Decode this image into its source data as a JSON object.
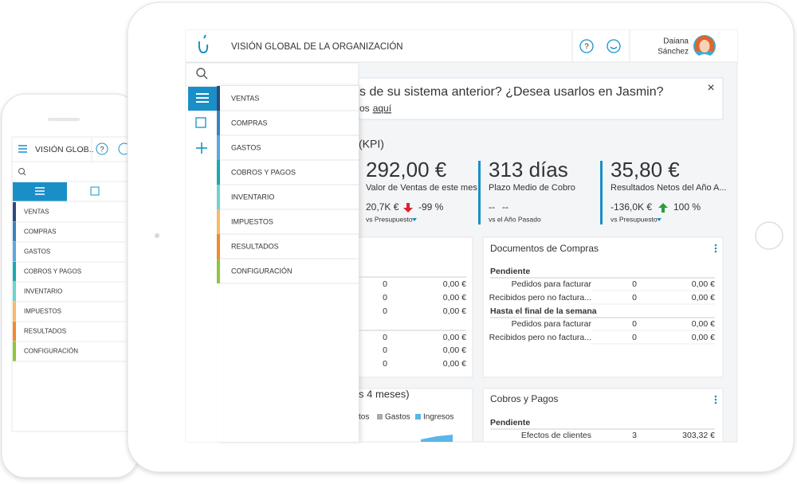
{
  "menu": [
    "VENTAS",
    "COMPRAS",
    "GASTOS",
    "COBROS Y PAGOS",
    "INVENTARIO",
    "IMPUESTOS",
    "RESULTADOS",
    "CONFIGURACIÓN"
  ],
  "phone": {
    "title": "VISIÓN GLOB..",
    "help_icon": "?"
  },
  "tablet": {
    "header": {
      "title": "VISIÓN GLOBAL DE LA ORGANIZACIÓN",
      "help_icon": "?",
      "user_first": "Daiana",
      "user_last": "Sánchez"
    },
    "banner": {
      "text": "s de su sistema anterior? ¿Desea usarlos en Jasmin?",
      "subtext": "os",
      "link": "aquí",
      "close": "×"
    },
    "kpi_section": "(KPI)",
    "kpis": [
      {
        "value": "292,00 €",
        "label": "Valor de Ventas de este mes",
        "reference": "20,7K €",
        "change": "-99 %",
        "compare": "vs Presupuesto"
      },
      {
        "value": "313 días",
        "label": "Plazo Medio de Cobro",
        "reference": "--",
        "change": "--",
        "compare": "vs el Año Pasado"
      },
      {
        "value": "35,80 €",
        "label": "Resultados Netos del Año A...",
        "reference": "-136,0K €",
        "change": "100 %",
        "compare": "vs Presupuesto"
      }
    ],
    "partial_card": {
      "rows": [
        [
          "0",
          "0,00 €"
        ],
        [
          "0",
          "0,00 €"
        ],
        [
          "0",
          "0,00 €"
        ],
        [
          "0",
          "0,00 €"
        ],
        [
          "0",
          "0,00 €"
        ],
        [
          "0",
          "0,00 €"
        ]
      ]
    },
    "purchases_card": {
      "title": "Documentos de Compras",
      "groups": [
        {
          "heading": "Pendiente",
          "rows": [
            [
              "Pedidos para facturar",
              "0",
              "0,00 €"
            ],
            [
              "Recibidos pero no factura...",
              "0",
              "0,00 €"
            ]
          ]
        },
        {
          "heading": "Hasta el final de la semana",
          "rows": [
            [
              "Pedidos para facturar",
              "0",
              "0,00 €"
            ],
            [
              "Recibidos pero no factura...",
              "0",
              "0,00 €"
            ]
          ]
        }
      ]
    },
    "chart_card": {
      "title": "s 4 meses)",
      "legend": [
        "tos",
        "Gastos",
        "Ingresos"
      ]
    },
    "payments_card": {
      "title": "Cobros y Pagos",
      "heading": "Pendiente",
      "rows": [
        [
          "Efectos de clientes",
          "3",
          "303,32 €"
        ]
      ]
    }
  }
}
